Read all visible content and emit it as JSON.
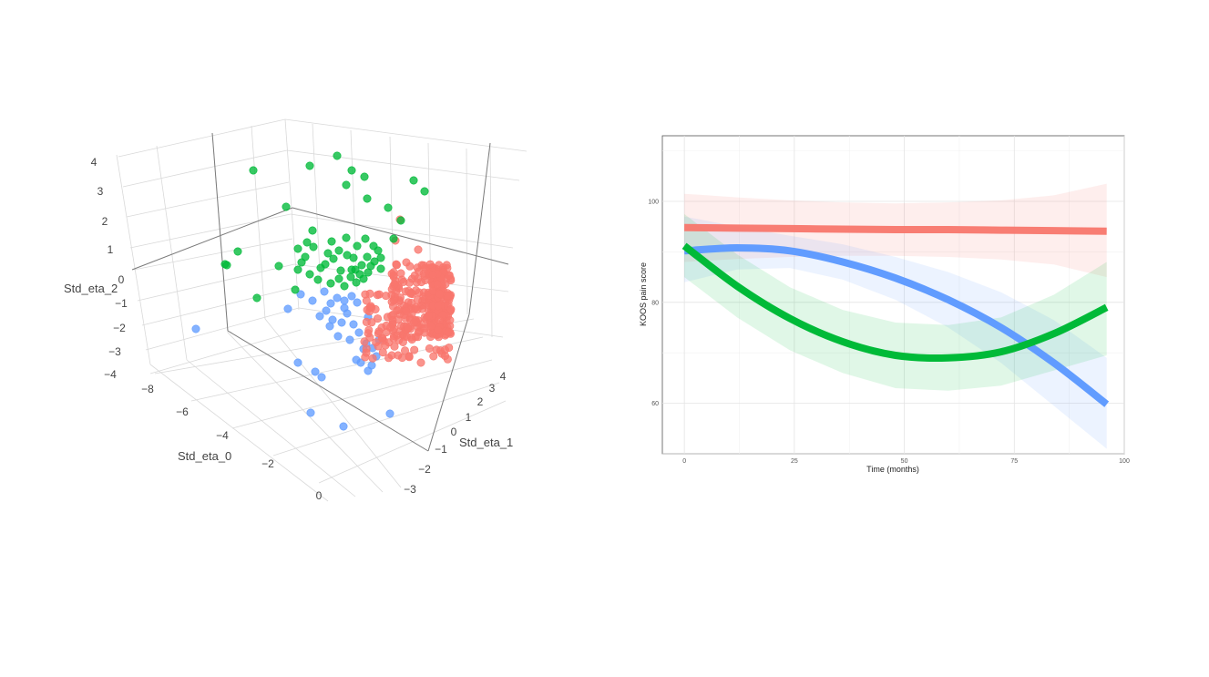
{
  "colors": {
    "red": "#F8766D",
    "green": "#00BA38",
    "blue": "#619CFF"
  },
  "chart_data": [
    {
      "type": "scatter",
      "projection": "3d",
      "title": "",
      "axes": {
        "x": {
          "label": "Std_eta_0",
          "ticks": [
            "−8",
            "−6",
            "−4",
            "−2",
            "0"
          ]
        },
        "y": {
          "label": "Std_eta_1",
          "ticks": [
            "−3",
            "−2",
            "−1",
            "0",
            "1",
            "2",
            "3",
            "4"
          ]
        },
        "z": {
          "label": "Std_eta_2",
          "ticks": [
            "−4",
            "−3",
            "−2",
            "−1",
            "0",
            "1",
            "2",
            "3",
            "4"
          ]
        }
      },
      "series": [
        {
          "color": "red",
          "points": "~350 points clustered near Std_eta_0 ≈ 0, Std_eta_1 0 to 4, Std_eta_2 −2 to 2"
        },
        {
          "color": "green",
          "points": "~60 points spread Std_eta_0 −8 to 0, Std_eta_2 0 to 4"
        },
        {
          "color": "blue",
          "points": "~45 points Std_eta_0 −8 to 0, Std_eta_2 −4 to 0"
        }
      ]
    },
    {
      "type": "line",
      "title": "",
      "xlabel": "Time (months)",
      "ylabel": "KOOS pain score",
      "xlim": [
        -5,
        100
      ],
      "ylim": [
        50,
        113
      ],
      "xticks": [
        "0",
        "25",
        "50",
        "75",
        "100"
      ],
      "yticks": [
        "60",
        "80",
        "100"
      ],
      "series": [
        {
          "color": "red",
          "x": [
            0,
            12,
            24,
            36,
            48,
            60,
            72,
            84,
            96
          ],
          "values": [
            94.8,
            94.7,
            94.6,
            94.5,
            94.4,
            94.4,
            94.3,
            94.2,
            94.1
          ],
          "ci_lower": [
            88,
            88.6,
            89,
            89.2,
            89.2,
            89,
            88.5,
            87.5,
            85
          ],
          "ci_upper": [
            101.5,
            100.8,
            100.2,
            99.8,
            99.6,
            99.8,
            100.2,
            101.2,
            103.5
          ]
        },
        {
          "color": "blue",
          "x": [
            0,
            12,
            24,
            36,
            48,
            60,
            72,
            84,
            96
          ],
          "values": [
            90.2,
            90.8,
            90.2,
            88,
            84.8,
            80.5,
            75,
            68,
            59.8
          ],
          "ci_lower": [
            84,
            86.5,
            86.8,
            84.5,
            80.5,
            75,
            68,
            59.5,
            51
          ],
          "ci_upper": [
            97,
            95,
            93.2,
            91.5,
            89,
            86,
            82,
            76.5,
            69
          ]
        },
        {
          "color": "green",
          "x": [
            0,
            12,
            24,
            36,
            48,
            60,
            72,
            84,
            96
          ],
          "values": [
            91.2,
            83.2,
            76.8,
            72.2,
            69.5,
            69,
            70.2,
            73.8,
            79
          ],
          "ci_lower": [
            85,
            77,
            70.5,
            66,
            63,
            62.5,
            63.5,
            66.5,
            69.5
          ],
          "ci_upper": [
            97.5,
            89.5,
            83,
            78.5,
            76,
            75.5,
            77,
            81.5,
            88
          ]
        }
      ]
    }
  ]
}
